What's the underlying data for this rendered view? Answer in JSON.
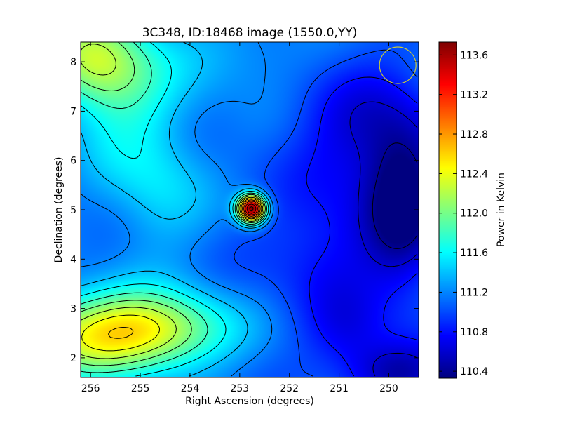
{
  "chart_data": {
    "type": "heatmap",
    "title": "3C348, ID:18468 image (1550.0,YY)",
    "xlabel": "Right Ascension (degrees)",
    "ylabel": "Declination (degrees)",
    "xlim": [
      256.2,
      249.4
    ],
    "ylim": [
      1.6,
      8.4
    ],
    "x_ticks": [
      256,
      255,
      254,
      253,
      252,
      251,
      250
    ],
    "x_tick_labels": [
      "256",
      "255",
      "254",
      "253",
      "252",
      "251",
      "250"
    ],
    "y_ticks": [
      2,
      3,
      4,
      5,
      6,
      7,
      8
    ],
    "y_tick_labels": [
      "2",
      "3",
      "4",
      "5",
      "6",
      "7",
      "8"
    ],
    "colormap": "jet",
    "colorbar": {
      "label": "Power in Kelvin",
      "range": [
        110.33,
        113.73
      ],
      "ticks": [
        110.4,
        110.8,
        111.2,
        111.6,
        112.0,
        112.4,
        112.8,
        113.2,
        113.6
      ],
      "tick_labels": [
        "110.4",
        "110.8",
        "111.2",
        "111.6",
        "112.0",
        "112.4",
        "112.8",
        "113.2",
        "113.6"
      ]
    },
    "background_level": 111.1,
    "features": [
      {
        "kind": "peak",
        "ra": 252.76,
        "dec": 5.02,
        "amplitude": 2.63,
        "sigma": 0.2
      },
      {
        "kind": "bright_region",
        "ra": 255.9,
        "dec": 2.45,
        "amplitude": 1.15,
        "sigma_ra": 1.25,
        "sigma_dec": 0.62
      },
      {
        "kind": "bright_region",
        "ra": 254.5,
        "dec": 2.6,
        "amplitude": 0.7,
        "sigma_ra": 1.0,
        "sigma_dec": 0.55
      },
      {
        "kind": "bright_region",
        "ra": 256.0,
        "dec": 8.1,
        "amplitude": 0.95,
        "sigma_ra": 0.75,
        "sigma_dec": 0.7
      },
      {
        "kind": "bright_region",
        "ra": 255.3,
        "dec": 7.2,
        "amplitude": 0.45,
        "sigma_ra": 0.8,
        "sigma_dec": 1.1
      },
      {
        "kind": "bright_region",
        "ra": 254.6,
        "dec": 5.4,
        "amplitude": 0.35,
        "sigma_ra": 0.7,
        "sigma_dec": 0.9
      },
      {
        "kind": "bright_region",
        "ra": 253.3,
        "dec": 8.1,
        "amplitude": 0.25,
        "sigma_ra": 1.0,
        "sigma_dec": 0.6
      },
      {
        "kind": "dim_region",
        "ra": 249.7,
        "dec": 5.1,
        "amplitude": -0.78,
        "sigma_ra": 0.55,
        "sigma_dec": 1.15
      },
      {
        "kind": "dim_region",
        "ra": 250.5,
        "dec": 6.6,
        "amplitude": -0.45,
        "sigma_ra": 0.9,
        "sigma_dec": 0.9
      },
      {
        "kind": "dim_region",
        "ra": 249.8,
        "dec": 1.7,
        "amplitude": -0.6,
        "sigma_ra": 0.7,
        "sigma_dec": 0.45
      },
      {
        "kind": "dim_region",
        "ra": 251.2,
        "dec": 4.2,
        "amplitude": -0.35,
        "sigma_ra": 0.9,
        "sigma_dec": 1.0
      },
      {
        "kind": "dim_region",
        "ra": 250.8,
        "dec": 2.5,
        "amplitude": -0.3,
        "sigma_ra": 0.6,
        "sigma_dec": 0.6
      }
    ],
    "contour_interval": 0.2,
    "beam_marker": {
      "ra": 249.82,
      "dec": 7.93,
      "radius_deg": 0.37,
      "color": "#c8c83c"
    }
  }
}
